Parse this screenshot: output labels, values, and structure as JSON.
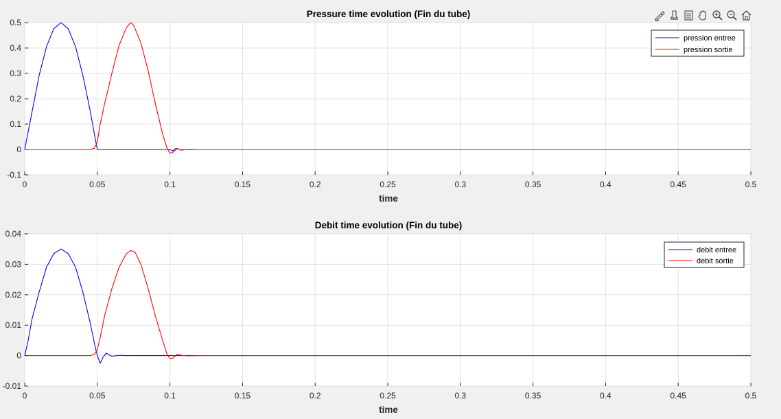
{
  "toolbar": {
    "buttons": [
      {
        "icon": "brush-edit-icon"
      },
      {
        "icon": "data-tip-icon"
      },
      {
        "icon": "save-icon"
      },
      {
        "icon": "pan-hand-icon"
      },
      {
        "icon": "zoom-in-icon"
      },
      {
        "icon": "zoom-out-icon"
      },
      {
        "icon": "home-icon"
      }
    ]
  },
  "colors": {
    "entree": "#0000ff",
    "sortie": "#ff0000",
    "grid": "#e0e0e0",
    "axes_bg": "#ffffff",
    "figure_bg": "#f0f0f0"
  },
  "chart_data": [
    {
      "type": "line",
      "title": "Pressure time evolution (Fin du tube)",
      "xlabel": "time",
      "ylabel": "",
      "xlim": [
        0,
        0.5
      ],
      "ylim": [
        -0.1,
        0.5
      ],
      "xticks": [
        0,
        0.05,
        0.1,
        0.15,
        0.2,
        0.25,
        0.3,
        0.35,
        0.4,
        0.45,
        0.5
      ],
      "xtick_labels": [
        "0",
        "0.05",
        "0.1",
        "0.15",
        "0.2",
        "0.25",
        "0.3",
        "0.35",
        "0.4",
        "0.45",
        "0.5"
      ],
      "yticks": [
        -0.1,
        0,
        0.1,
        0.2,
        0.3,
        0.4,
        0.5
      ],
      "ytick_labels": [
        "-0.1",
        "0",
        "0.1",
        "0.2",
        "0.3",
        "0.4",
        "0.5"
      ],
      "grid": true,
      "legend_position": "top-right",
      "series": [
        {
          "name": "pression entree",
          "color": "#0000ff",
          "x": [
            0,
            0.005,
            0.01,
            0.015,
            0.02,
            0.025,
            0.03,
            0.035,
            0.04,
            0.045,
            0.048,
            0.05,
            0.06,
            0.08,
            0.1,
            0.102,
            0.104,
            0.106,
            0.108,
            0.11,
            0.2,
            0.5
          ],
          "y": [
            0,
            0.147,
            0.294,
            0.405,
            0.476,
            0.5,
            0.476,
            0.405,
            0.294,
            0.155,
            0.06,
            0,
            0,
            0,
            0,
            -0.006,
            0.004,
            0.002,
            -0.001,
            0,
            0,
            0
          ]
        },
        {
          "name": "pression sortie",
          "color": "#ff0000",
          "x": [
            0,
            0.045,
            0.048,
            0.05,
            0.052,
            0.055,
            0.06,
            0.065,
            0.07,
            0.073,
            0.075,
            0.08,
            0.085,
            0.09,
            0.095,
            0.098,
            0.1,
            0.102,
            0.105,
            0.108,
            0.112,
            0.12,
            0.2,
            0.5
          ],
          "y": [
            0,
            0,
            0.005,
            0.03,
            0.1,
            0.18,
            0.3,
            0.41,
            0.48,
            0.5,
            0.49,
            0.42,
            0.31,
            0.18,
            0.06,
            0.005,
            -0.015,
            -0.012,
            0.004,
            -0.003,
            0.001,
            0,
            0,
            0
          ]
        }
      ]
    },
    {
      "type": "line",
      "title": "Debit time evolution (Fin du tube)",
      "xlabel": "time",
      "ylabel": "",
      "xlim": [
        0,
        0.5
      ],
      "ylim": [
        -0.01,
        0.04
      ],
      "xticks": [
        0,
        0.05,
        0.1,
        0.15,
        0.2,
        0.25,
        0.3,
        0.35,
        0.4,
        0.45,
        0.5
      ],
      "xtick_labels": [
        "0",
        "0.05",
        "0.1",
        "0.15",
        "0.2",
        "0.25",
        "0.3",
        "0.35",
        "0.4",
        "0.45",
        "0.5"
      ],
      "yticks": [
        -0.01,
        0,
        0.01,
        0.02,
        0.03,
        0.04
      ],
      "ytick_labels": [
        "-0.01",
        "0",
        "0.01",
        "0.02",
        "0.03",
        "0.04"
      ],
      "grid": true,
      "legend_position": "top-right",
      "series": [
        {
          "name": "debit entree",
          "color": "#0000ff",
          "x": [
            0,
            0.002,
            0.005,
            0.01,
            0.015,
            0.02,
            0.025,
            0.03,
            0.035,
            0.04,
            0.045,
            0.048,
            0.05,
            0.052,
            0.054,
            0.056,
            0.058,
            0.06,
            0.065,
            0.07,
            0.1,
            0.2,
            0.5
          ],
          "y": [
            0,
            0.004,
            0.012,
            0.021,
            0.029,
            0.0335,
            0.035,
            0.0335,
            0.029,
            0.021,
            0.011,
            0.004,
            0,
            -0.0025,
            -0.0005,
            0.0008,
            0.0003,
            -0.0002,
            0.0001,
            0,
            0,
            0,
            0
          ]
        },
        {
          "name": "debit sortie",
          "color": "#ff0000",
          "x": [
            0,
            0.045,
            0.048,
            0.05,
            0.052,
            0.055,
            0.06,
            0.065,
            0.07,
            0.073,
            0.076,
            0.08,
            0.085,
            0.09,
            0.095,
            0.098,
            0.1,
            0.102,
            0.105,
            0.108,
            0.112,
            0.12,
            0.2,
            0.5
          ],
          "y": [
            0,
            0,
            0.0005,
            0.002,
            0.006,
            0.013,
            0.022,
            0.029,
            0.0335,
            0.0345,
            0.034,
            0.03,
            0.022,
            0.013,
            0.005,
            0.0005,
            -0.001,
            -0.0008,
            0.0004,
            0.0001,
            -0.0001,
            0,
            0,
            0
          ]
        }
      ]
    }
  ]
}
